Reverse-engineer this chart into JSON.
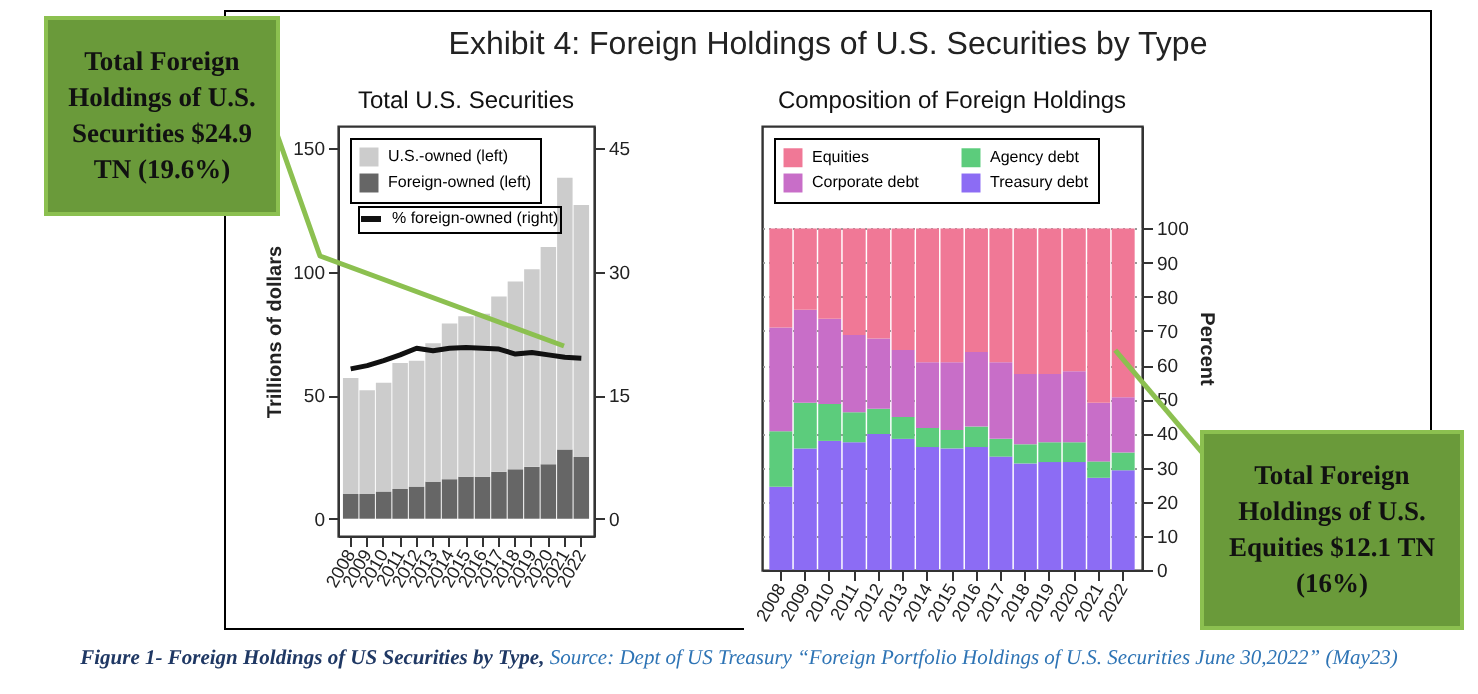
{
  "chart_data": [
    {
      "type": "bar",
      "title": "Exhibit 4: Foreign Holdings of U.S. Securities by Type",
      "subtitle": "Total U.S. Securities",
      "ylabel": "Trillions of dollars",
      "categories": [
        "2008",
        "2009",
        "2010",
        "2011",
        "2012",
        "2013",
        "2014",
        "2015",
        "2016",
        "2017",
        "2018",
        "2019",
        "2020",
        "2021",
        "2022"
      ],
      "stacked": true,
      "legend": "top left",
      "grid": false,
      "ylim": [
        -7,
        159
      ],
      "yticks": [
        0,
        50,
        100,
        150
      ],
      "y2lim": [
        -2.1,
        47.7
      ],
      "y2ticks": [
        0,
        15,
        30,
        45
      ],
      "series": [
        {
          "name": "Foreign-owned (left)",
          "color": "#666666",
          "values": [
            10,
            10,
            11,
            12,
            13,
            15,
            16,
            17,
            17,
            19,
            20,
            21,
            22,
            28,
            25
          ]
        },
        {
          "name": "U.S.-owned (left)",
          "color": "#cccccc",
          "values": [
            47,
            42,
            44,
            51,
            51,
            56,
            63,
            65,
            66,
            71,
            76,
            80,
            88,
            110,
            102
          ]
        },
        {
          "name": "% foreign-owned (right)",
          "type": "line",
          "axis": "y2",
          "color": "#111111",
          "values": [
            18.2,
            18.6,
            19.2,
            19.9,
            20.7,
            20.4,
            20.7,
            20.8,
            20.7,
            20.6,
            20.0,
            20.2,
            19.9,
            19.6,
            19.5
          ]
        }
      ],
      "annotations": [
        "Total Foreign Holdings of U.S. Securities $24.9 TN (19.6%)",
        "Figure 1- Foreign Holdings of US Securities by Type,",
        "Source:  Dept of US Treasury “Foreign Portfolio Holdings of U.S. Securities June 30,2022” (May23)"
      ]
    },
    {
      "type": "bar",
      "title": "Composition of Foreign Holdings",
      "ylabel": "Percent",
      "categories": [
        "2008",
        "2009",
        "2010",
        "2011",
        "2012",
        "2013",
        "2014",
        "2015",
        "2016",
        "2017",
        "2018",
        "2019",
        "2020",
        "2021",
        "2022"
      ],
      "stacked": true,
      "legend": "top left",
      "grid": "y",
      "ylim": [
        0,
        130
      ],
      "yticks": [
        0,
        10,
        20,
        30,
        40,
        50,
        60,
        70,
        80,
        90,
        100
      ],
      "series": [
        {
          "name": "Treasury debt",
          "color": "#8c6cf4",
          "values": [
            24.4,
            35.6,
            37.8,
            37.4,
            39.8,
            38.4,
            36,
            35.6,
            36,
            33.2,
            31.2,
            31.6,
            31.6,
            27,
            29.2
          ]
        },
        {
          "name": "Agency debt",
          "color": "#5ccc7c",
          "values": [
            16.2,
            13.4,
            10.8,
            8.8,
            7.4,
            6.4,
            5.6,
            5.4,
            6,
            5.2,
            5.6,
            5.8,
            5.8,
            4.8,
            5.2
          ]
        },
        {
          "name": "Corporate debt",
          "color": "#c86ec8",
          "values": [
            30.4,
            27.2,
            25,
            22.6,
            20.6,
            19.6,
            19.2,
            19.8,
            21.8,
            22.4,
            20.6,
            20,
            20.8,
            17.2,
            16.2
          ]
        },
        {
          "name": "Equities",
          "color": "#f07896",
          "values": [
            29,
            23.8,
            26.4,
            31.2,
            32.2,
            35.6,
            39.2,
            39.2,
            36.2,
            39.2,
            42.6,
            42.6,
            41.8,
            51,
            49.4
          ]
        }
      ],
      "annotations": [
        {
          "text": "Total Foreign Holdings of U.S. Equities $12.1 TN (16%)",
          "x": "2022",
          "y": 62
        }
      ]
    }
  ]
}
